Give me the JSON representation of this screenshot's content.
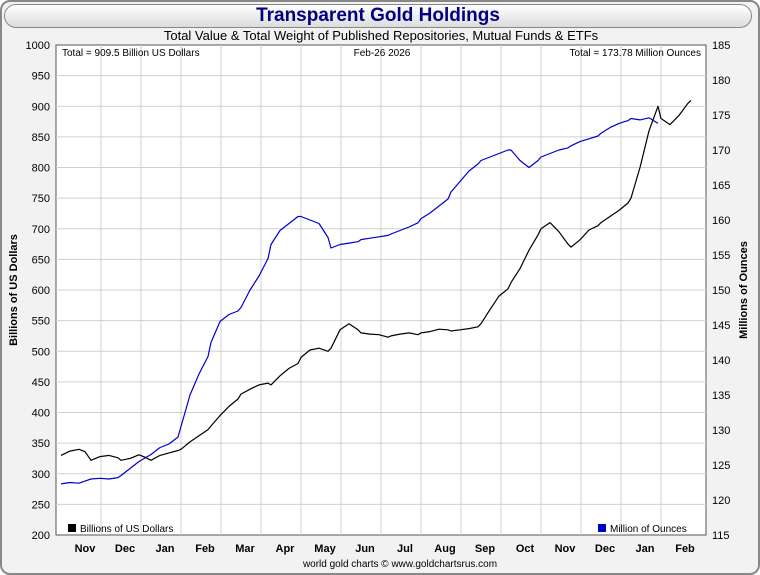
{
  "header": {
    "title": "Transparent Gold Holdings"
  },
  "chart_data": {
    "type": "line",
    "subtitle": "Total Value & Total Weight of Published Repositories, Mutual Funds & ETFs",
    "date_label": "Feb-26 2026",
    "left_note": "Total = 909.5 Billion US Dollars",
    "right_note": "Total = 173.78 Million Ounces",
    "ylabel_left": "Billions of US Dollars",
    "ylabel_right": "Millions of Ounces",
    "footer": "world gold charts © www.goldchartsrus.com",
    "x_categories": [
      "Nov",
      "Dec",
      "Jan",
      "Feb",
      "Mar",
      "Apr",
      "May",
      "Jun",
      "Jul",
      "Aug",
      "Sep",
      "Oct",
      "Nov",
      "Dec",
      "Jan",
      "Feb"
    ],
    "ylim_left": [
      200,
      1000
    ],
    "ylim_right": [
      115,
      185
    ],
    "yticks_left": [
      200,
      250,
      300,
      350,
      400,
      450,
      500,
      550,
      600,
      650,
      700,
      750,
      800,
      850,
      900,
      950,
      1000
    ],
    "yticks_right": [
      115,
      120,
      125,
      130,
      135,
      140,
      145,
      150,
      155,
      160,
      165,
      170,
      175,
      180,
      185
    ],
    "grid": true,
    "legend": {
      "position": "bottom"
    },
    "series": [
      {
        "name": "Billions of US Dollars",
        "axis": "left",
        "color": "#000000",
        "points": [
          [
            0,
            330
          ],
          [
            0.3,
            337
          ],
          [
            0.6,
            340
          ],
          [
            0.8,
            336
          ],
          [
            1,
            322
          ],
          [
            1.3,
            328
          ],
          [
            1.6,
            330
          ],
          [
            1.9,
            326
          ],
          [
            2,
            322
          ],
          [
            2.3,
            325
          ],
          [
            2.6,
            331
          ],
          [
            2.8,
            327
          ],
          [
            3,
            322
          ],
          [
            3.3,
            330
          ],
          [
            3.6,
            334
          ],
          [
            3.9,
            338
          ],
          [
            4,
            340
          ],
          [
            4.3,
            352
          ],
          [
            4.6,
            362
          ],
          [
            4.9,
            372
          ],
          [
            5,
            378
          ],
          [
            5.3,
            395
          ],
          [
            5.6,
            410
          ],
          [
            5.9,
            422
          ],
          [
            6,
            430
          ],
          [
            6.3,
            438
          ],
          [
            6.6,
            445
          ],
          [
            6.9,
            448
          ],
          [
            7,
            445
          ],
          [
            7.3,
            460
          ],
          [
            7.6,
            472
          ],
          [
            7.9,
            480
          ],
          [
            8,
            490
          ],
          [
            8.3,
            502
          ],
          [
            8.6,
            505
          ],
          [
            8.9,
            500
          ],
          [
            9,
            505
          ],
          [
            9.3,
            535
          ],
          [
            9.6,
            545
          ],
          [
            9.9,
            535
          ],
          [
            10,
            530
          ],
          [
            10.3,
            528
          ],
          [
            10.6,
            527
          ],
          [
            10.9,
            523
          ],
          [
            11,
            525
          ],
          [
            11.3,
            528
          ],
          [
            11.6,
            530
          ],
          [
            11.9,
            527
          ],
          [
            12,
            530
          ],
          [
            12.3,
            532
          ],
          [
            12.6,
            536
          ],
          [
            12.9,
            535
          ],
          [
            13,
            533
          ],
          [
            13.3,
            535
          ],
          [
            13.6,
            537
          ],
          [
            13.9,
            540
          ],
          [
            14,
            545
          ],
          [
            14.3,
            568
          ],
          [
            14.6,
            590
          ],
          [
            14.9,
            602
          ],
          [
            15,
            612
          ],
          [
            15.3,
            635
          ],
          [
            15.6,
            665
          ],
          [
            15.9,
            690
          ],
          [
            16,
            700
          ],
          [
            16.3,
            710
          ],
          [
            16.6,
            695
          ],
          [
            16.9,
            675
          ],
          [
            17,
            670
          ],
          [
            17.3,
            682
          ],
          [
            17.6,
            698
          ],
          [
            17.9,
            705
          ],
          [
            18,
            710
          ],
          [
            18.3,
            720
          ],
          [
            18.6,
            730
          ],
          [
            18.9,
            742
          ],
          [
            19,
            750
          ],
          [
            19.3,
            800
          ],
          [
            19.6,
            860
          ],
          [
            19.9,
            900
          ],
          [
            20,
            880
          ],
          [
            20.3,
            870
          ],
          [
            20.6,
            885
          ],
          [
            20.9,
            905
          ],
          [
            21,
            909.5
          ]
        ]
      },
      {
        "name": "Million of Ounces",
        "axis": "right",
        "color": "#0000cc",
        "points": [
          [
            0,
            122.3
          ],
          [
            0.3,
            122.5
          ],
          [
            0.6,
            122.4
          ],
          [
            0.8,
            122.7
          ],
          [
            1,
            123.0
          ],
          [
            1.3,
            123.1
          ],
          [
            1.6,
            123.0
          ],
          [
            1.9,
            123.2
          ],
          [
            2,
            123.5
          ],
          [
            2.3,
            124.5
          ],
          [
            2.6,
            125.5
          ],
          [
            2.8,
            126.0
          ],
          [
            3,
            126.5
          ],
          [
            3.3,
            127.5
          ],
          [
            3.6,
            128.0
          ],
          [
            3.9,
            129.0
          ],
          [
            4,
            130.5
          ],
          [
            4.3,
            135
          ],
          [
            4.6,
            138
          ],
          [
            4.9,
            140.5
          ],
          [
            5,
            142.5
          ],
          [
            5.3,
            145.5
          ],
          [
            5.6,
            146.5
          ],
          [
            5.9,
            147.0
          ],
          [
            6,
            147.5
          ],
          [
            6.3,
            150
          ],
          [
            6.6,
            152
          ],
          [
            6.9,
            154.5
          ],
          [
            7,
            156.5
          ],
          [
            7.3,
            158.5
          ],
          [
            7.6,
            159.5
          ],
          [
            7.9,
            160.5
          ],
          [
            8,
            160.5
          ],
          [
            8.3,
            160.0
          ],
          [
            8.6,
            159.5
          ],
          [
            8.9,
            157.5
          ],
          [
            9,
            156.0
          ],
          [
            9.3,
            156.5
          ],
          [
            9.6,
            156.7
          ],
          [
            9.9,
            156.9
          ],
          [
            10,
            157.2
          ],
          [
            10.3,
            157.4
          ],
          [
            10.6,
            157.6
          ],
          [
            10.9,
            157.8
          ],
          [
            11,
            158.0
          ],
          [
            11.3,
            158.5
          ],
          [
            11.6,
            159.0
          ],
          [
            11.9,
            159.6
          ],
          [
            12,
            160.2
          ],
          [
            12.3,
            161.0
          ],
          [
            12.6,
            162.0
          ],
          [
            12.9,
            163.0
          ],
          [
            13,
            164.0
          ],
          [
            13.3,
            165.5
          ],
          [
            13.6,
            167.0
          ],
          [
            13.9,
            168.0
          ],
          [
            14,
            168.5
          ],
          [
            14.3,
            169.0
          ],
          [
            14.6,
            169.5
          ],
          [
            14.9,
            170.0
          ],
          [
            15,
            170.0
          ],
          [
            15.3,
            168.5
          ],
          [
            15.6,
            167.5
          ],
          [
            15.9,
            168.5
          ],
          [
            16,
            169.0
          ],
          [
            16.3,
            169.5
          ],
          [
            16.6,
            170.0
          ],
          [
            16.9,
            170.3
          ],
          [
            17,
            170.6
          ],
          [
            17.3,
            171.2
          ],
          [
            17.6,
            171.6
          ],
          [
            17.9,
            172.0
          ],
          [
            18,
            172.4
          ],
          [
            18.3,
            173.2
          ],
          [
            18.6,
            173.8
          ],
          [
            18.9,
            174.2
          ],
          [
            19,
            174.5
          ],
          [
            19.3,
            174.3
          ],
          [
            19.6,
            174.6
          ],
          [
            19.9,
            173.8
          ]
        ]
      }
    ]
  }
}
